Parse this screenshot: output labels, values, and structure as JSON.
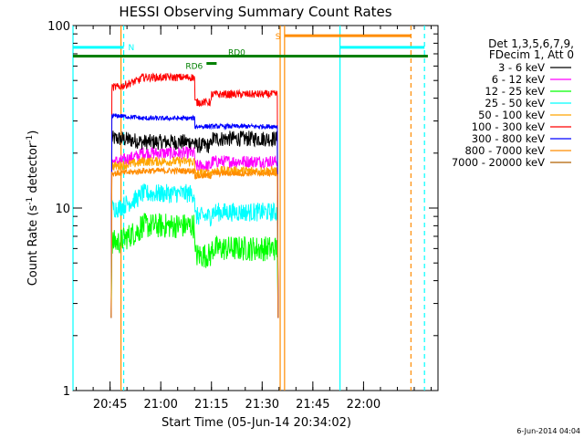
{
  "chart_data": {
    "type": "line",
    "title": "HESSI Observing Summary Count Rates",
    "xlabel": "Start Time (05-Jun-14 20:34:02)",
    "ylabel_base": "Count Rate (s",
    "ylabel_sup1": "-1",
    "ylabel_mid": " detector",
    "ylabel_sup2": "-1",
    "ylabel_end": ")",
    "x_range_minutes": [
      0,
      108
    ],
    "ylim": [
      1,
      100
    ],
    "yscale": "log",
    "x_ticks": [
      {
        "minute": 10.97,
        "label": "20:45"
      },
      {
        "minute": 25.97,
        "label": "21:00"
      },
      {
        "minute": 40.97,
        "label": "21:15"
      },
      {
        "minute": 55.97,
        "label": "21:30"
      },
      {
        "minute": 70.97,
        "label": "21:45"
      },
      {
        "minute": 85.97,
        "label": "22:00"
      }
    ],
    "y_ticks": [
      {
        "value": 1,
        "label": "1"
      },
      {
        "value": 10,
        "label": "10"
      },
      {
        "value": 100,
        "label": "100"
      }
    ],
    "legend": {
      "header1": "Det 1,3,5,6,7,9,",
      "header2": "FDecim 1, Att 0",
      "placement": "right"
    },
    "series": [
      {
        "name": "3 - 6 keV",
        "color": "#000000",
        "pre": 24,
        "mid": 23,
        "post": 24,
        "dip": 22,
        "noise": 0.1
      },
      {
        "name": "6 - 12 keV",
        "color": "#ff00ff",
        "pre": 18,
        "mid": 20,
        "post": 18,
        "dip": 17,
        "noise": 0.08
      },
      {
        "name": "12 - 25 keV",
        "color": "#00ff00",
        "pre": 6.5,
        "mid": 8,
        "post": 6,
        "dip": 5.5,
        "noise": 0.16
      },
      {
        "name": "25 - 50 keV",
        "color": "#00ffff",
        "pre": 10,
        "mid": 12,
        "post": 9.5,
        "dip": 9,
        "noise": 0.12
      },
      {
        "name": "50 - 100 keV",
        "color": "#ffa500",
        "pre": 17,
        "mid": 18,
        "post": 16,
        "dip": 15.5,
        "noise": 0.06
      },
      {
        "name": "100 - 300 keV",
        "color": "#ff0000",
        "pre": 46,
        "mid": 52,
        "post": 42,
        "dip": 38,
        "noise": 0.05
      },
      {
        "name": "300 - 800 keV",
        "color": "#0000ff",
        "pre": 32,
        "mid": 31,
        "post": 28,
        "dip": 28,
        "noise": 0.03
      },
      {
        "name": "800 - 7000 keV",
        "color": "#ff8c00",
        "pre": 15.5,
        "mid": 16,
        "post": 15.5,
        "dip": 15,
        "noise": 0.04
      },
      {
        "name": "7000 - 20000 keV",
        "color": "#b06000"
      }
    ],
    "activity_window_minutes": [
      11.5,
      60.5
    ],
    "mid_segment_minutes": [
      20,
      36
    ],
    "dip_segment_minutes": [
      36,
      41
    ],
    "annotations": {
      "flags": [
        {
          "label": "N",
          "color": "#00ffff",
          "value": 76,
          "segments": [
            [
              0,
              15
            ],
            [
              79,
              104
            ]
          ]
        },
        {
          "label": "S",
          "color": "#ff8c00",
          "value": 88,
          "segments": [
            [
              62.5,
              100
            ]
          ]
        },
        {
          "label": "RD0",
          "color": "#008000",
          "value": 68,
          "segments": [
            [
              0,
              105
            ]
          ]
        },
        {
          "label": "RD6",
          "color": "#008000",
          "value": 62,
          "segments": [
            [
              39.5,
              42.5
            ]
          ]
        }
      ],
      "vertical_markers": [
        {
          "minute": 0,
          "color": "#00ffff",
          "style": "solid"
        },
        {
          "minute": 15,
          "color": "#00ffff",
          "style": "dashed"
        },
        {
          "minute": 79,
          "color": "#00ffff",
          "style": "solid"
        },
        {
          "minute": 104,
          "color": "#00ffff",
          "style": "dashed"
        },
        {
          "minute": 14.2,
          "color": "#ff8c00",
          "style": "solid"
        },
        {
          "minute": 61.3,
          "color": "#ff8c00",
          "style": "solid"
        },
        {
          "minute": 62.6,
          "color": "#ff8c00",
          "style": "solid"
        },
        {
          "minute": 100,
          "color": "#ff8c00",
          "style": "dashed"
        }
      ]
    }
  },
  "footer_timestamp": "6-Jun-2014 04:04"
}
